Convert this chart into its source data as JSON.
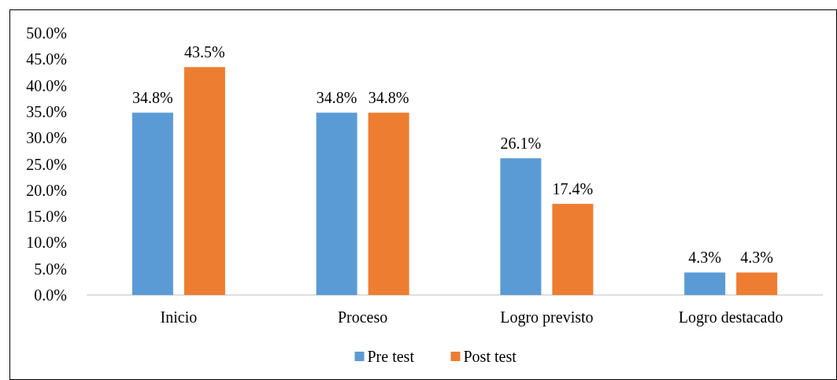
{
  "chart_data": {
    "type": "bar",
    "categories": [
      "Inicio",
      "Proceso",
      "Logro previsto",
      "Logro destacado"
    ],
    "series": [
      {
        "name": "Pre test",
        "color": "#5b9bd5",
        "values": [
          34.8,
          34.8,
          26.1,
          4.3
        ],
        "value_labels": [
          "34.8%",
          "34.8%",
          "26.1%",
          "4.3%"
        ]
      },
      {
        "name": "Post test",
        "color": "#ed7d31",
        "values": [
          43.5,
          34.8,
          17.4,
          4.3
        ],
        "value_labels": [
          "43.5%",
          "34.8%",
          "17.4%",
          "4.3%"
        ]
      }
    ],
    "ylim": [
      0,
      50
    ],
    "yticks": [
      {
        "value": 0,
        "label": "0.0%"
      },
      {
        "value": 5,
        "label": "5.0%"
      },
      {
        "value": 10,
        "label": "10.0%"
      },
      {
        "value": 15,
        "label": "15.0%"
      },
      {
        "value": 20,
        "label": "20.0%"
      },
      {
        "value": 25,
        "label": "25.0%"
      },
      {
        "value": 30,
        "label": "30.0%"
      },
      {
        "value": 35,
        "label": "35.0%"
      },
      {
        "value": 40,
        "label": "40.0%"
      },
      {
        "value": 45,
        "label": "45.0%"
      },
      {
        "value": 50,
        "label": "50.0%"
      }
    ],
    "legend": "bottom"
  }
}
